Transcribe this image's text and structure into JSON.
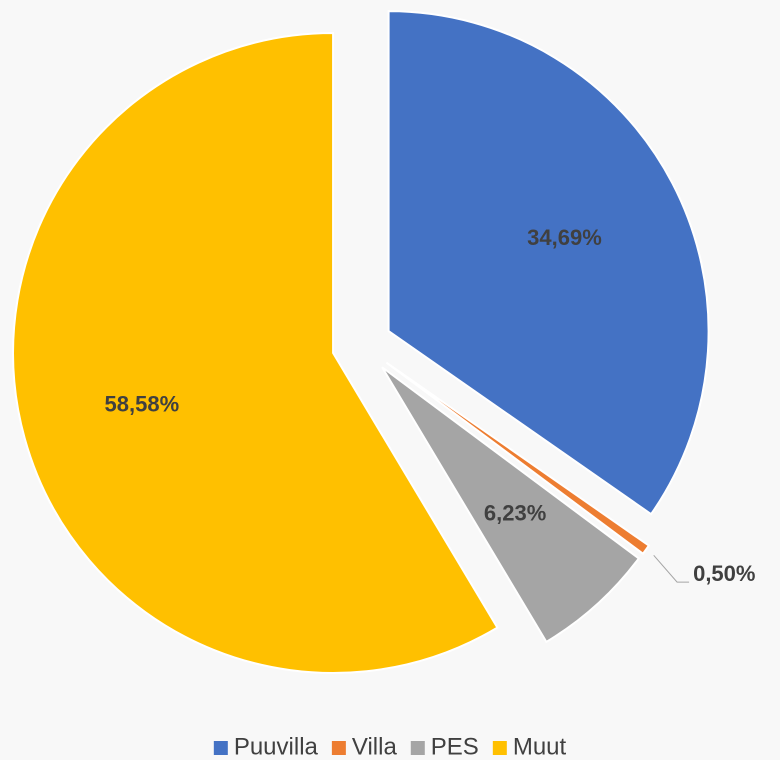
{
  "chart_data": {
    "type": "pie",
    "categories": [
      "Puuvilla",
      "Villa",
      "PES",
      "Muut"
    ],
    "values": [
      34.69,
      0.5,
      6.23,
      58.58
    ],
    "value_labels": [
      "34,69%",
      "0,50%",
      "6,23%",
      "58,58%"
    ],
    "colors": [
      "#4472c4",
      "#ed7d31",
      "#a5a5a5",
      "#ffc000"
    ],
    "legend": "bottom"
  }
}
